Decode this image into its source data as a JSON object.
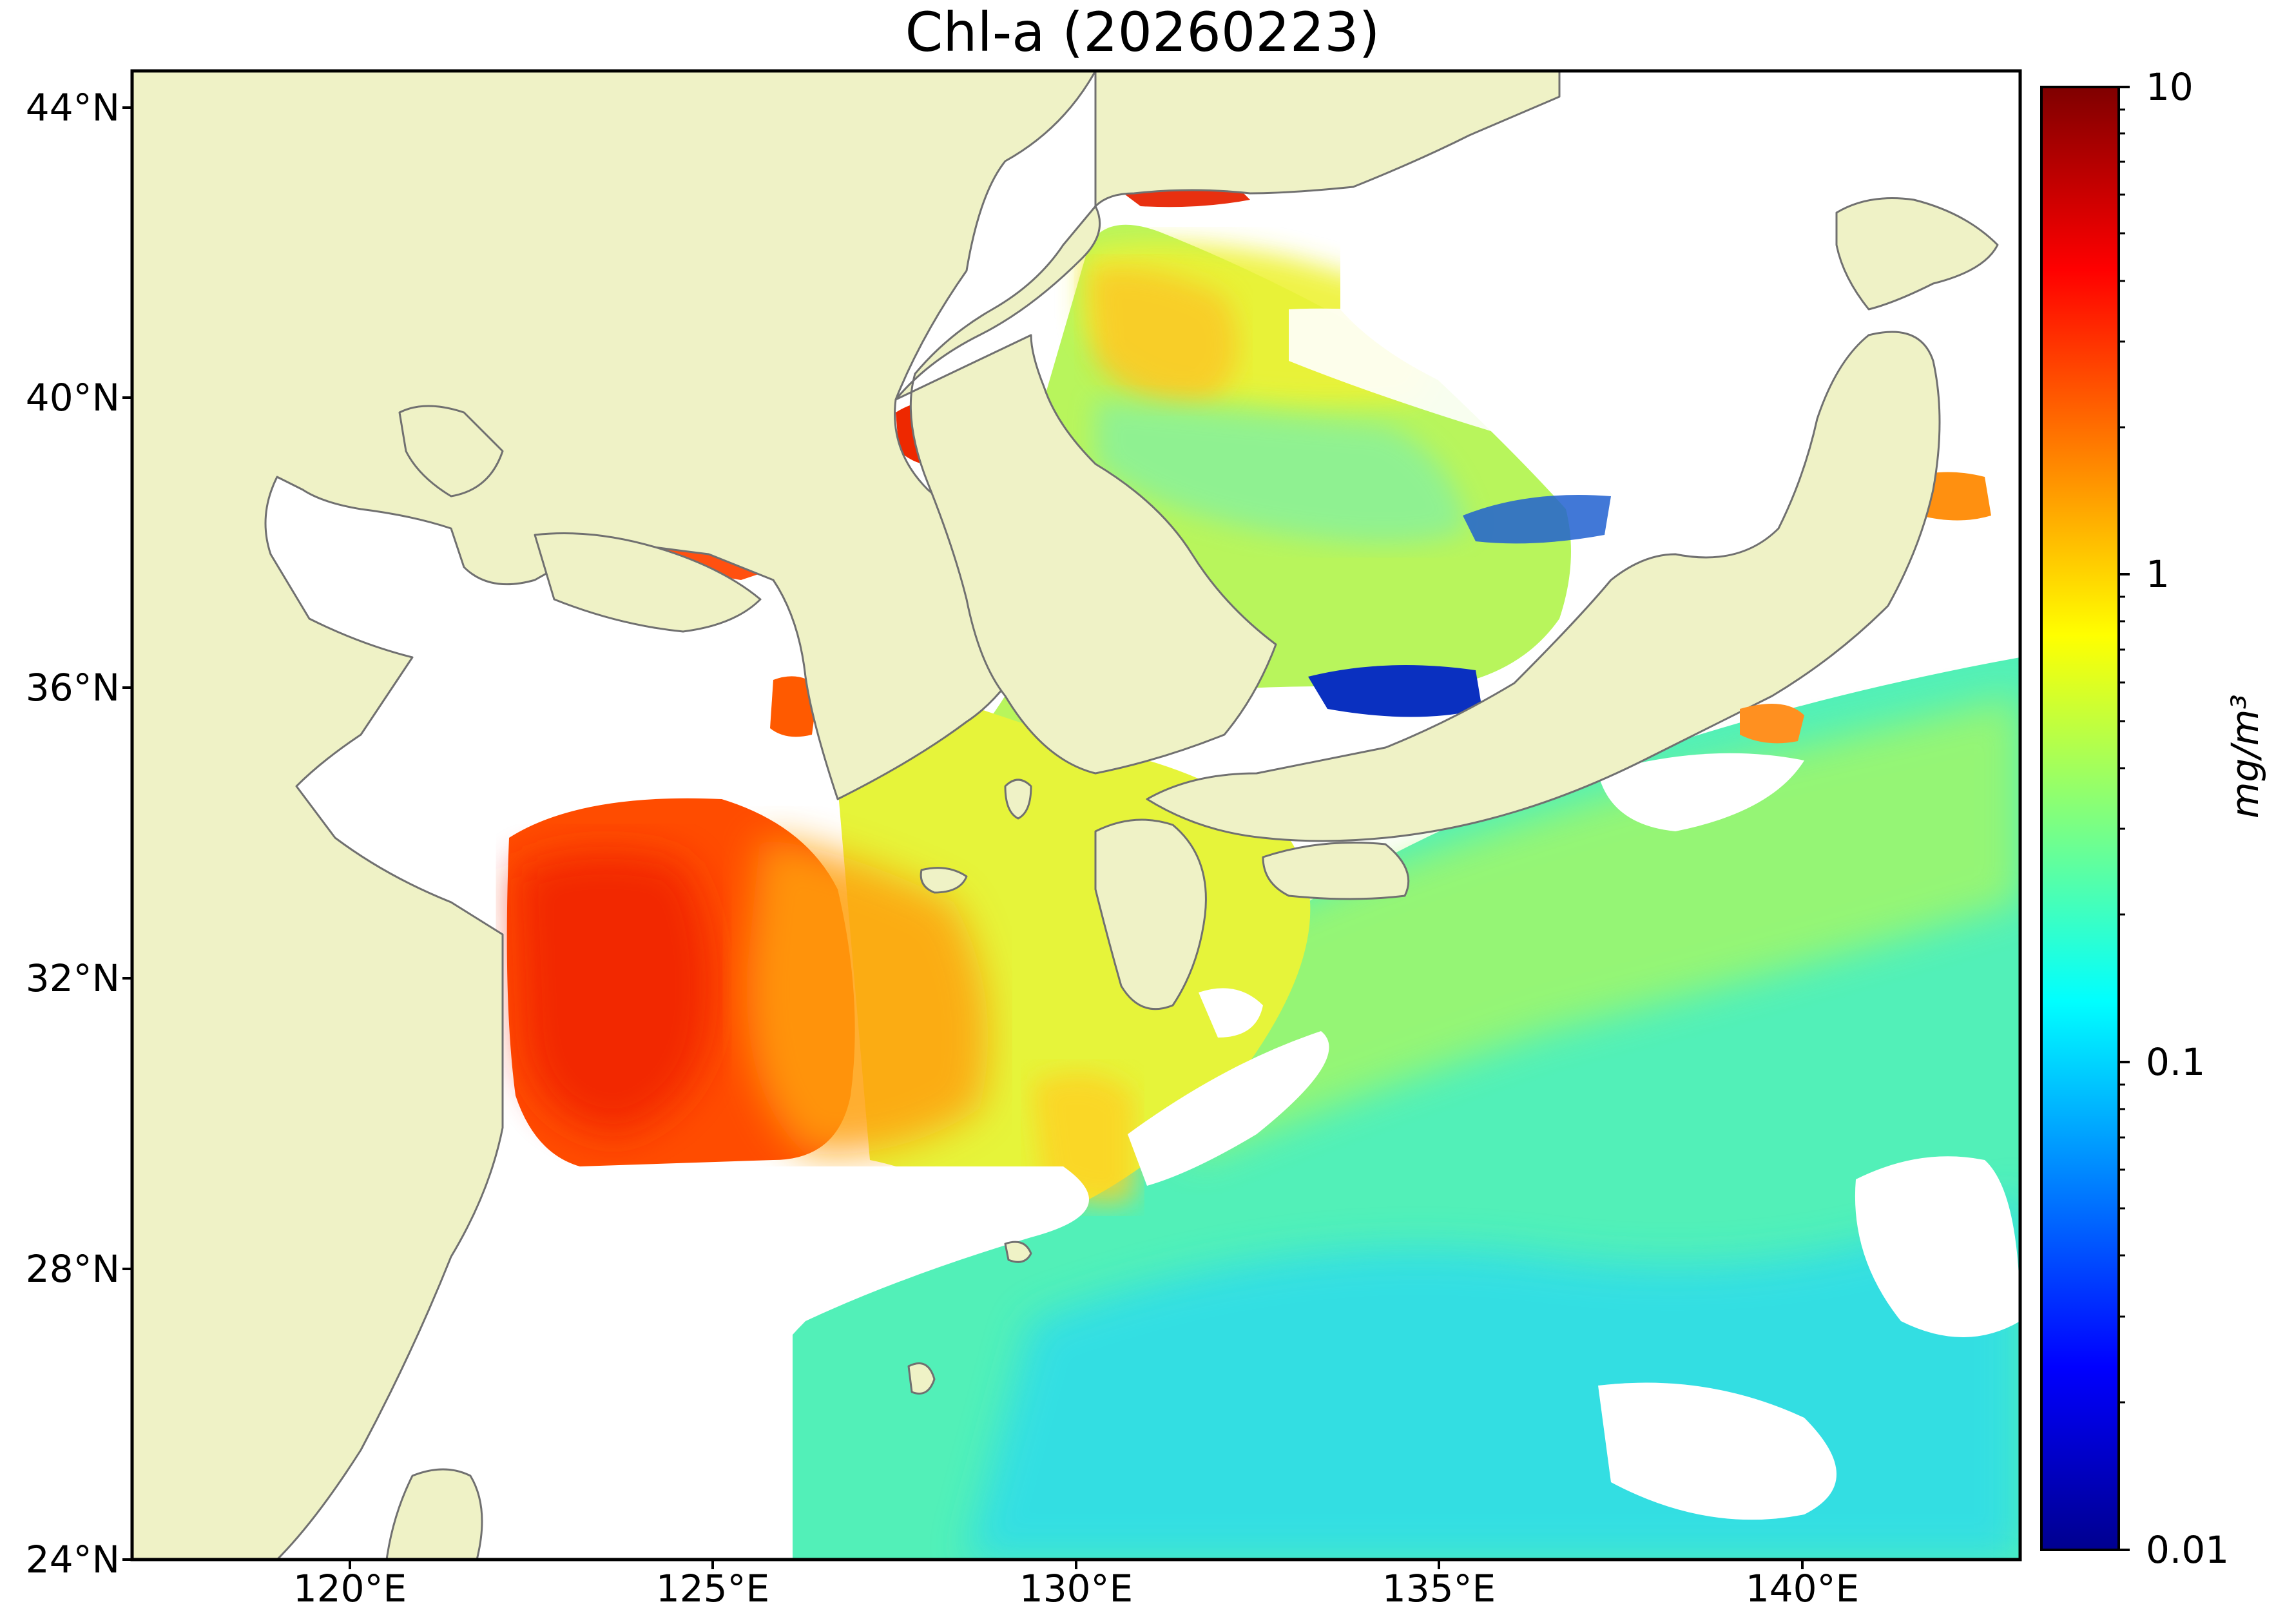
{
  "title": "Chl-a (20260223)",
  "map": {
    "extent": {
      "lon_min": 117,
      "lon_max": 143,
      "lat_min": 24,
      "lat_max": 44.5
    },
    "land_color": "#eff2c6",
    "coastline_color": "#707070",
    "no_data_color": "#ffffff"
  },
  "axes": {
    "lat_ticks": [
      {
        "value": 44,
        "label": "44°N"
      },
      {
        "value": 40,
        "label": "40°N"
      },
      {
        "value": 36,
        "label": "36°N"
      },
      {
        "value": 32,
        "label": "32°N"
      },
      {
        "value": 28,
        "label": "28°N"
      },
      {
        "value": 24,
        "label": "24°N"
      }
    ],
    "lon_ticks": [
      {
        "value": 120,
        "label": "120°E"
      },
      {
        "value": 125,
        "label": "125°E"
      },
      {
        "value": 130,
        "label": "130°E"
      },
      {
        "value": 135,
        "label": "135°E"
      },
      {
        "value": 140,
        "label": "140°E"
      }
    ]
  },
  "colorbar": {
    "scale": "log",
    "colormap": "jet",
    "unit_label": "mg/m³",
    "ticks": [
      {
        "value": 10,
        "label": "10"
      },
      {
        "value": 1,
        "label": "1"
      },
      {
        "value": 0.1,
        "label": "0.1"
      },
      {
        "value": 0.01,
        "label": "0.01"
      }
    ]
  }
}
